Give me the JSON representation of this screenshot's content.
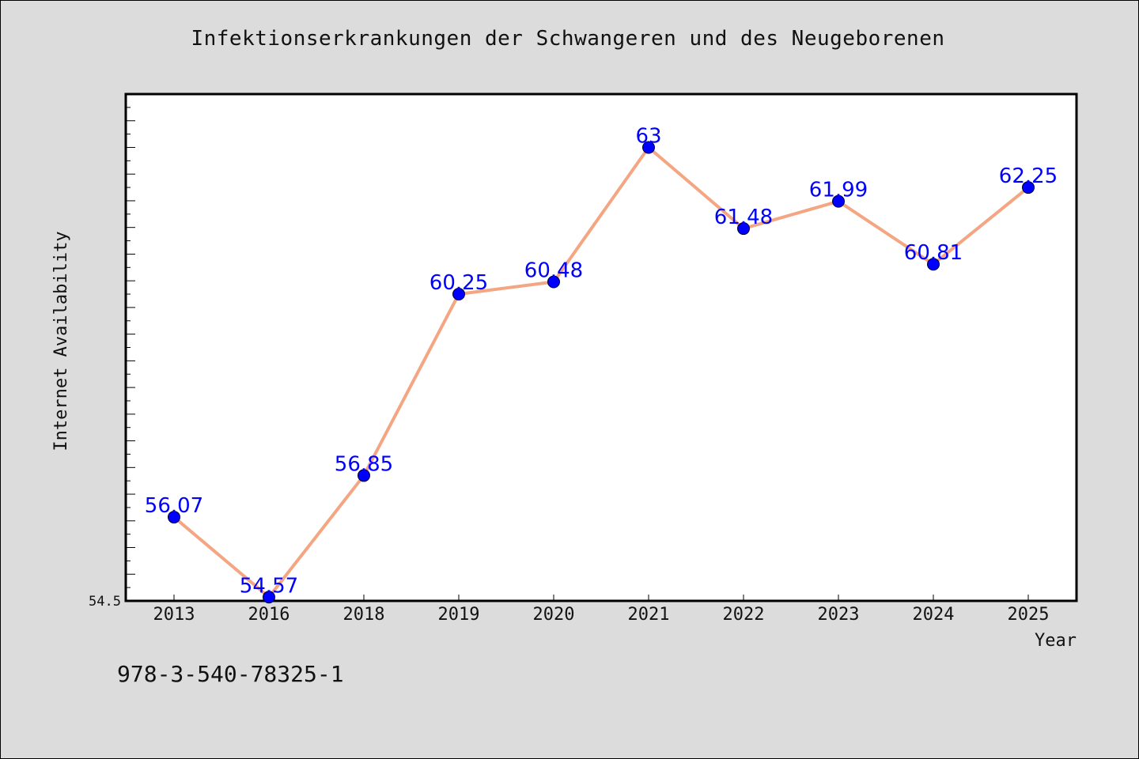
{
  "chart_data": {
    "type": "line",
    "title": "Infektionserkrankungen der Schwangeren und des Neugeborenen",
    "xlabel": "Year",
    "ylabel": "Internet Availability",
    "categories": [
      "2013",
      "2016",
      "2018",
      "2019",
      "2020",
      "2021",
      "2022",
      "2023",
      "2024",
      "2025"
    ],
    "series": [
      {
        "values": [
          56.07,
          54.57,
          56.85,
          60.25,
          60.48,
          63,
          61.48,
          61.99,
          60.81,
          62.25
        ],
        "labels": [
          "56.07",
          "54.57",
          "56.85",
          "60.25",
          "60.48",
          "63",
          "61.48",
          "61.99",
          "60.81",
          "62.25"
        ]
      }
    ],
    "ylim": [
      54.5,
      64.0
    ],
    "ytick_label": "54.5",
    "legend": "none",
    "grid": false,
    "colors": {
      "line": "#f4a582",
      "marker": "#0000ff",
      "label": "#0000ff",
      "plot_bg": "#ffffff",
      "figure_bg": "#dcdcdc"
    }
  },
  "footer": {
    "isbn": "978-3-540-78325-1"
  }
}
